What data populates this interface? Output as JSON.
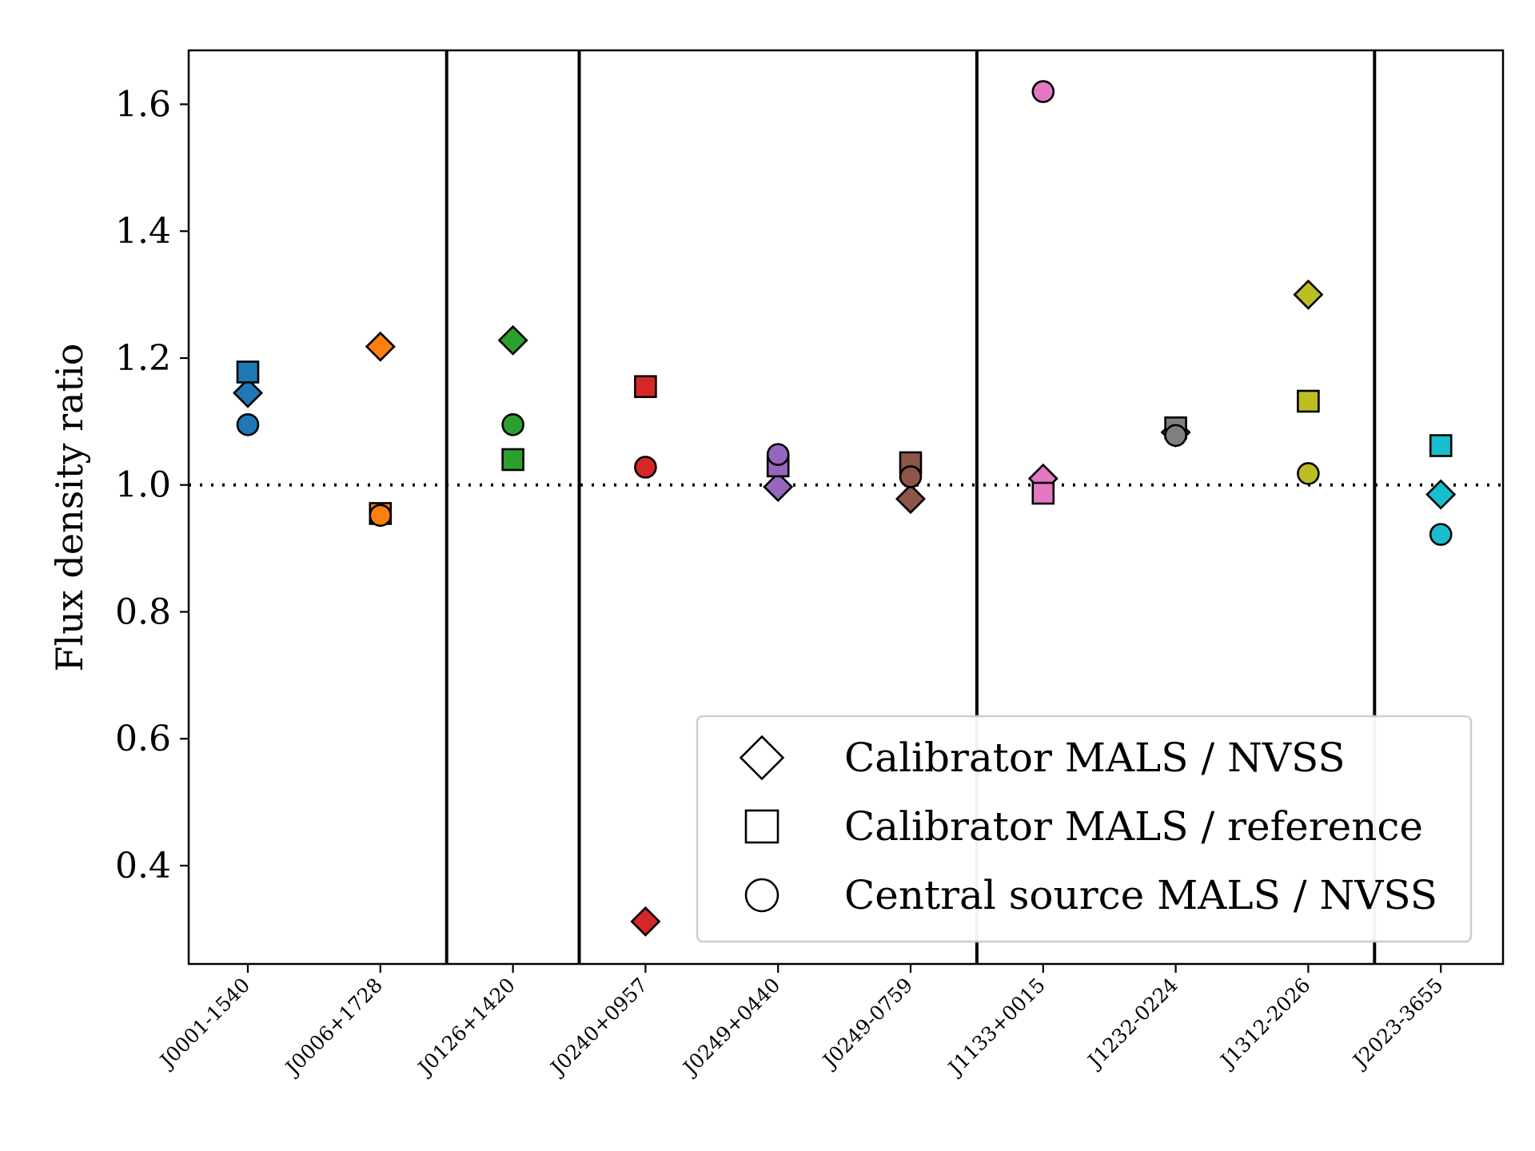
{
  "chart_data": {
    "type": "scatter",
    "title": "",
    "xlabel": "",
    "ylabel": "Flux density ratio",
    "ylim": [
      0.245,
      1.685
    ],
    "yticks": [
      "0.4",
      "0.6",
      "0.8",
      "1.0",
      "1.2",
      "1.4",
      "1.6"
    ],
    "yticks_values": [
      0.4,
      0.6,
      0.8,
      1.0,
      1.2,
      1.4,
      1.6
    ],
    "categories": [
      "J0001-1540",
      "J0006+1728",
      "J0126+1420",
      "J0240+0957",
      "J0249+0440",
      "J0249-0759",
      "J1133+0015",
      "J1232-0224",
      "J1312-2026",
      "J2023-3655"
    ],
    "group_dividers_after": [
      1,
      2,
      5,
      8
    ],
    "reference_line": 1.0,
    "grid": false,
    "legend_position": "lower-right",
    "category_colors": [
      "#1f77b4",
      "#ff7f0e",
      "#2ca02c",
      "#d62728",
      "#9467bd",
      "#8c564b",
      "#e377c2",
      "#7f7f7f",
      "#bcbd22",
      "#17becf"
    ],
    "series": [
      {
        "name": "Calibrator MALS / NVSS",
        "marker": "diamond",
        "values": [
          1.145,
          1.218,
          1.228,
          0.312,
          0.997,
          0.978,
          1.01,
          1.083,
          1.3,
          0.985
        ]
      },
      {
        "name": "Calibrator MALS / reference",
        "marker": "square",
        "values": [
          1.178,
          0.955,
          1.04,
          1.155,
          1.03,
          1.035,
          0.987,
          1.09,
          1.132,
          1.062
        ]
      },
      {
        "name": "Central source MALS / NVSS",
        "marker": "circle",
        "values": [
          1.095,
          0.952,
          1.095,
          1.028,
          1.048,
          1.013,
          1.62,
          1.078,
          1.018,
          0.922
        ]
      }
    ]
  }
}
